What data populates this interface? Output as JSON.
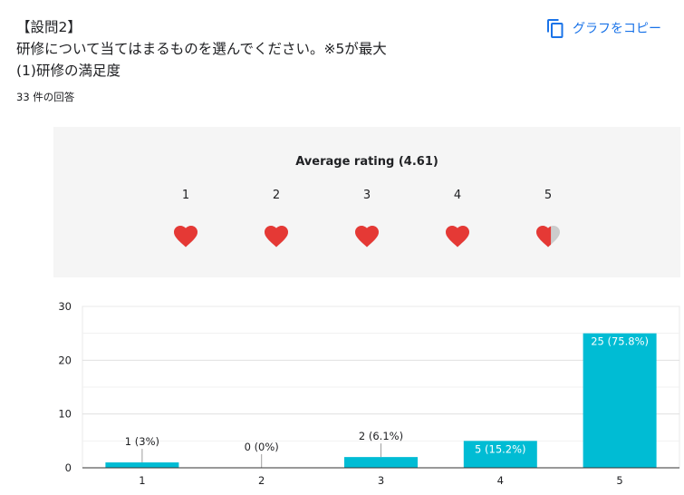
{
  "question": {
    "line1": "【設問2】",
    "line2": "研修について当てはまるものを選んでください。※5が最大",
    "line3": "(1)研修の満足度"
  },
  "response_count": "33 件の回答",
  "copy_button": {
    "label": "グラフをコピー",
    "icon": "copy-icon",
    "color": "#1a73e8"
  },
  "rating_summary": {
    "title": "Average rating (4.61)",
    "average": 4.61,
    "scale": [
      "1",
      "2",
      "3",
      "4",
      "5"
    ],
    "icon": "heart-icon",
    "filled_color": "#e53935",
    "empty_color": "#cccccc"
  },
  "chart_data": {
    "type": "bar",
    "categories": [
      "1",
      "2",
      "3",
      "4",
      "5"
    ],
    "values": [
      1,
      0,
      2,
      5,
      25
    ],
    "data_labels": [
      "1 (3%)",
      "0 (0%)",
      "2 (6.1%)",
      "5 (15.2%)",
      "25 (75.8%)"
    ],
    "ylim": [
      0,
      30
    ],
    "y_ticks": [
      "0",
      "10",
      "20",
      "30"
    ],
    "title": "",
    "xlabel": "",
    "ylabel": "",
    "grid": true,
    "bar_color": "#00bcd4"
  }
}
